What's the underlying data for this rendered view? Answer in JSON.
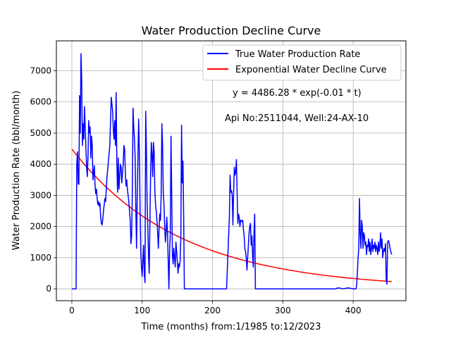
{
  "chart_data": {
    "type": "line",
    "title": "Water Production Decline Curve",
    "xlabel": "Time (months) from:1/1985 to:12/2023",
    "ylabel": "Water Production Rate (bbl/month)",
    "xlim": [
      -22,
      475
    ],
    "ylim": [
      -380,
      7960
    ],
    "xticks": [
      0,
      100,
      200,
      300,
      400
    ],
    "yticks": [
      0,
      1000,
      2000,
      3000,
      4000,
      5000,
      6000,
      7000
    ],
    "grid": true,
    "legend_position": "top-right",
    "annotations": [
      "y = 4486.28 * exp(-0.01 * t)",
      "Api No:2511044, Well:24-AX-10"
    ],
    "fit": {
      "a": 4486.28,
      "b": 0.0065,
      "x_start": 0,
      "x_end": 455
    },
    "series": [
      {
        "name": "True Water Production Rate",
        "color": "#0000ff",
        "points": [
          [
            0,
            0
          ],
          [
            6,
            0
          ],
          [
            7,
            4000
          ],
          [
            8,
            4400
          ],
          [
            9,
            3380
          ],
          [
            10,
            3350
          ],
          [
            11,
            6200
          ],
          [
            12,
            5000
          ],
          [
            13,
            7550
          ],
          [
            14,
            6700
          ],
          [
            15,
            4600
          ],
          [
            16,
            5300
          ],
          [
            17,
            4800
          ],
          [
            18,
            5850
          ],
          [
            19,
            5200
          ],
          [
            20,
            4500
          ],
          [
            21,
            3900
          ],
          [
            22,
            3600
          ],
          [
            23,
            4300
          ],
          [
            24,
            5400
          ],
          [
            25,
            5000
          ],
          [
            26,
            5200
          ],
          [
            27,
            4200
          ],
          [
            28,
            4900
          ],
          [
            29,
            4600
          ],
          [
            30,
            3500
          ],
          [
            31,
            3700
          ],
          [
            32,
            3950
          ],
          [
            33,
            3300
          ],
          [
            34,
            3050
          ],
          [
            35,
            3200
          ],
          [
            36,
            2900
          ],
          [
            37,
            2700
          ],
          [
            38,
            2800
          ],
          [
            39,
            2650
          ],
          [
            40,
            2750
          ],
          [
            41,
            2300
          ],
          [
            42,
            2100
          ],
          [
            43,
            2050
          ],
          [
            44,
            2250
          ],
          [
            45,
            2500
          ],
          [
            46,
            2700
          ],
          [
            47,
            2900
          ],
          [
            48,
            2800
          ],
          [
            50,
            3600
          ],
          [
            52,
            4100
          ],
          [
            54,
            4600
          ],
          [
            56,
            6150
          ],
          [
            58,
            5700
          ],
          [
            59,
            5100
          ],
          [
            60,
            4800
          ],
          [
            61,
            5400
          ],
          [
            62,
            4600
          ],
          [
            63,
            6300
          ],
          [
            64,
            4000
          ],
          [
            65,
            3100
          ],
          [
            66,
            4200
          ],
          [
            67,
            3200
          ],
          [
            68,
            3600
          ],
          [
            69,
            4000
          ],
          [
            70,
            3900
          ],
          [
            71,
            3400
          ],
          [
            72,
            3700
          ],
          [
            73,
            4000
          ],
          [
            74,
            4600
          ],
          [
            75,
            4500
          ],
          [
            76,
            3800
          ],
          [
            77,
            3300
          ],
          [
            78,
            3500
          ],
          [
            79,
            3200
          ],
          [
            80,
            3000
          ],
          [
            81,
            2800
          ],
          [
            82,
            2500
          ],
          [
            83,
            2200
          ],
          [
            84,
            1450
          ],
          [
            85,
            1700
          ],
          [
            86,
            3100
          ],
          [
            87,
            5800
          ],
          [
            88,
            5200
          ],
          [
            89,
            4800
          ],
          [
            90,
            4200
          ],
          [
            91,
            2500
          ],
          [
            92,
            1300
          ],
          [
            93,
            3100
          ],
          [
            94,
            4200
          ],
          [
            95,
            5450
          ],
          [
            96,
            4400
          ],
          [
            97,
            2600
          ],
          [
            98,
            1200
          ],
          [
            99,
            700
          ],
          [
            100,
            400
          ],
          [
            101,
            900
          ],
          [
            102,
            1400
          ],
          [
            103,
            500
          ],
          [
            104,
            200
          ],
          [
            105,
            5700
          ],
          [
            106,
            4500
          ],
          [
            107,
            2800
          ],
          [
            108,
            2000
          ],
          [
            109,
            1100
          ],
          [
            110,
            500
          ],
          [
            111,
            2100
          ],
          [
            112,
            3700
          ],
          [
            113,
            4700
          ],
          [
            114,
            4300
          ],
          [
            115,
            3600
          ],
          [
            116,
            4700
          ],
          [
            117,
            4400
          ],
          [
            118,
            3200
          ],
          [
            119,
            2700
          ],
          [
            120,
            2500
          ],
          [
            121,
            2200
          ],
          [
            122,
            1800
          ],
          [
            123,
            1300
          ],
          [
            124,
            1900
          ],
          [
            125,
            2400
          ],
          [
            126,
            2200
          ],
          [
            127,
            3000
          ],
          [
            128,
            5300
          ],
          [
            129,
            4600
          ],
          [
            130,
            3100
          ],
          [
            131,
            2700
          ],
          [
            132,
            2000
          ],
          [
            133,
            1500
          ],
          [
            134,
            1800
          ],
          [
            135,
            2300
          ],
          [
            136,
            1800
          ],
          [
            137,
            900
          ],
          [
            138,
            0
          ],
          [
            139,
            1200
          ],
          [
            140,
            1800
          ],
          [
            141,
            4900
          ],
          [
            142,
            3000
          ],
          [
            143,
            1100
          ],
          [
            144,
            800
          ],
          [
            145,
            1300
          ],
          [
            146,
            1000
          ],
          [
            147,
            700
          ],
          [
            148,
            1500
          ],
          [
            149,
            1200
          ],
          [
            150,
            900
          ],
          [
            151,
            500
          ],
          [
            152,
            800
          ],
          [
            153,
            700
          ],
          [
            154,
            900
          ],
          [
            155,
            1700
          ],
          [
            156,
            5250
          ],
          [
            157,
            3400
          ],
          [
            158,
            4100
          ],
          [
            159,
            2300
          ],
          [
            160,
            0
          ],
          [
            161,
            0
          ],
          [
            162,
            0
          ],
          [
            220,
            0
          ],
          [
            224,
            2300
          ],
          [
            225,
            3650
          ],
          [
            226,
            3100
          ],
          [
            227,
            3150
          ],
          [
            228,
            3000
          ],
          [
            229,
            2050
          ],
          [
            230,
            3100
          ],
          [
            231,
            3900
          ],
          [
            232,
            3650
          ],
          [
            233,
            3750
          ],
          [
            234,
            4150
          ],
          [
            235,
            3100
          ],
          [
            236,
            2100
          ],
          [
            237,
            2400
          ],
          [
            238,
            2300
          ],
          [
            239,
            2000
          ],
          [
            240,
            2200
          ],
          [
            241,
            2200
          ],
          [
            242,
            2150
          ],
          [
            243,
            2200
          ],
          [
            244,
            1900
          ],
          [
            245,
            1700
          ],
          [
            246,
            1300
          ],
          [
            247,
            1200
          ],
          [
            248,
            1000
          ],
          [
            249,
            600
          ],
          [
            250,
            1000
          ],
          [
            251,
            1400
          ],
          [
            252,
            1800
          ],
          [
            253,
            2000
          ],
          [
            254,
            2100
          ],
          [
            255,
            1400
          ],
          [
            256,
            1700
          ],
          [
            257,
            1100
          ],
          [
            258,
            700
          ],
          [
            259,
            1800
          ],
          [
            260,
            2400
          ],
          [
            261,
            0
          ],
          [
            262,
            0
          ],
          [
            370,
            0
          ],
          [
            375,
            0
          ],
          [
            378,
            30
          ],
          [
            382,
            20
          ],
          [
            386,
            0
          ],
          [
            392,
            30
          ],
          [
            396,
            20
          ],
          [
            400,
            0
          ],
          [
            404,
            0
          ],
          [
            405,
            120
          ],
          [
            406,
            500
          ],
          [
            407,
            1000
          ],
          [
            408,
            1300
          ],
          [
            409,
            2900
          ],
          [
            410,
            1800
          ],
          [
            411,
            1300
          ],
          [
            412,
            2200
          ],
          [
            413,
            2000
          ],
          [
            414,
            1300
          ],
          [
            415,
            1800
          ],
          [
            416,
            1700
          ],
          [
            417,
            1400
          ],
          [
            418,
            1500
          ],
          [
            419,
            1100
          ],
          [
            420,
            1400
          ],
          [
            421,
            1350
          ],
          [
            422,
            1600
          ],
          [
            423,
            1200
          ],
          [
            424,
            1500
          ],
          [
            425,
            1100
          ],
          [
            426,
            1300
          ],
          [
            427,
            1600
          ],
          [
            428,
            1200
          ],
          [
            429,
            1400
          ],
          [
            430,
            1300
          ],
          [
            431,
            1500
          ],
          [
            432,
            1200
          ],
          [
            433,
            1400
          ],
          [
            434,
            1300
          ],
          [
            435,
            1100
          ],
          [
            436,
            1500
          ],
          [
            437,
            1200
          ],
          [
            438,
            1400
          ],
          [
            439,
            1800
          ],
          [
            440,
            1300
          ],
          [
            441,
            1600
          ],
          [
            442,
            1000
          ],
          [
            443,
            1200
          ],
          [
            444,
            1300
          ],
          [
            445,
            1200
          ],
          [
            446,
            1450
          ],
          [
            447,
            300
          ],
          [
            448,
            150
          ],
          [
            449,
            1500
          ],
          [
            450,
            1550
          ],
          [
            451,
            1500
          ],
          [
            452,
            1350
          ],
          [
            453,
            1250
          ],
          [
            454,
            1150
          ],
          [
            455,
            1100
          ]
        ]
      },
      {
        "name": "Exponential Water Decline Curve",
        "color": "#ff0000",
        "points": []
      }
    ]
  }
}
